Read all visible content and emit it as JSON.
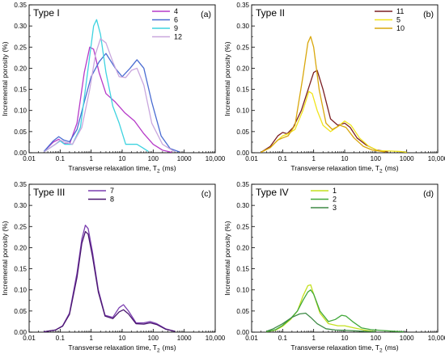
{
  "chart_data": [
    {
      "type": "line",
      "panel": "(a)",
      "title": "Type I",
      "xlabel": "Transverse relaxation time, T",
      "xlabel_sub": "2",
      "xlabel_unit": "(ms)",
      "ylabel": "Incremental porosity (%)",
      "xscale": "log",
      "xlim": [
        0.01,
        10000
      ],
      "ylim": [
        0,
        0.35
      ],
      "xticks": [
        "0.01",
        "0.1",
        "1",
        "10",
        "100",
        "1000",
        "10,000"
      ],
      "yticks": [
        "0.00",
        "0.05",
        "0.10",
        "0.15",
        "0.20",
        "0.25",
        "0.30",
        "0.35"
      ],
      "legend_position": "top-right",
      "series": [
        {
          "name": "4",
          "color": "#b63ac8",
          "points": [
            [
              0.03,
              0.003
            ],
            [
              0.06,
              0.025
            ],
            [
              0.09,
              0.032
            ],
            [
              0.13,
              0.022
            ],
            [
              0.2,
              0.02
            ],
            [
              0.35,
              0.07
            ],
            [
              0.6,
              0.19
            ],
            [
              0.9,
              0.25
            ],
            [
              1.2,
              0.245
            ],
            [
              1.8,
              0.19
            ],
            [
              3,
              0.14
            ],
            [
              6,
              0.12
            ],
            [
              12,
              0.095
            ],
            [
              25,
              0.075
            ],
            [
              50,
              0.045
            ],
            [
              100,
              0.02
            ],
            [
              200,
              0.006
            ],
            [
              400,
              0.001
            ]
          ]
        },
        {
          "name": "6",
          "color": "#4a6cd2",
          "points": [
            [
              0.03,
              0.003
            ],
            [
              0.06,
              0.028
            ],
            [
              0.09,
              0.038
            ],
            [
              0.13,
              0.03
            ],
            [
              0.2,
              0.026
            ],
            [
              0.35,
              0.055
            ],
            [
              0.6,
              0.12
            ],
            [
              1,
              0.18
            ],
            [
              1.8,
              0.215
            ],
            [
              3,
              0.235
            ],
            [
              6,
              0.2
            ],
            [
              10,
              0.18
            ],
            [
              18,
              0.2
            ],
            [
              30,
              0.22
            ],
            [
              50,
              0.2
            ],
            [
              90,
              0.12
            ],
            [
              180,
              0.04
            ],
            [
              350,
              0.01
            ],
            [
              700,
              0.002
            ]
          ]
        },
        {
          "name": "9",
          "color": "#3fd3e0",
          "points": [
            [
              0.03,
              0.002
            ],
            [
              0.07,
              0.02
            ],
            [
              0.1,
              0.028
            ],
            [
              0.14,
              0.02
            ],
            [
              0.25,
              0.02
            ],
            [
              0.45,
              0.06
            ],
            [
              0.8,
              0.2
            ],
            [
              1.2,
              0.3
            ],
            [
              1.5,
              0.315
            ],
            [
              2,
              0.28
            ],
            [
              3,
              0.19
            ],
            [
              5,
              0.11
            ],
            [
              8,
              0.07
            ],
            [
              13,
              0.02
            ],
            [
              20,
              0.02
            ],
            [
              30,
              0.02
            ],
            [
              45,
              0.012
            ],
            [
              70,
              0.003
            ]
          ]
        },
        {
          "name": "12",
          "color": "#c9a7de",
          "points": [
            [
              0.03,
              0.002
            ],
            [
              0.07,
              0.02
            ],
            [
              0.1,
              0.03
            ],
            [
              0.14,
              0.025
            ],
            [
              0.25,
              0.02
            ],
            [
              0.5,
              0.06
            ],
            [
              0.9,
              0.15
            ],
            [
              1.4,
              0.235
            ],
            [
              2,
              0.27
            ],
            [
              3,
              0.26
            ],
            [
              5,
              0.215
            ],
            [
              8,
              0.18
            ],
            [
              13,
              0.178
            ],
            [
              20,
              0.195
            ],
            [
              30,
              0.2
            ],
            [
              50,
              0.16
            ],
            [
              90,
              0.07
            ],
            [
              200,
              0.02
            ],
            [
              500,
              0.002
            ]
          ]
        }
      ]
    },
    {
      "type": "line",
      "panel": "(b)",
      "title": "Type II",
      "xlabel": "Transverse relaxation time, T",
      "xlabel_sub": "2",
      "xlabel_unit": "(ms)",
      "ylabel": "Incremental porosity (%)",
      "xscale": "log",
      "xlim": [
        0.01,
        10000
      ],
      "ylim": [
        0,
        0.35
      ],
      "xticks": [
        "0.01",
        "0.1",
        "1",
        "10",
        "100",
        "1000",
        "10,000"
      ],
      "yticks": [
        "0.00",
        "0.05",
        "0.10",
        "0.15",
        "0.20",
        "0.25",
        "0.30",
        "0.35"
      ],
      "legend_position": "top-right",
      "series": [
        {
          "name": "11",
          "color": "#7a1e22",
          "points": [
            [
              0.02,
              0.001
            ],
            [
              0.04,
              0.015
            ],
            [
              0.07,
              0.04
            ],
            [
              0.1,
              0.048
            ],
            [
              0.14,
              0.045
            ],
            [
              0.22,
              0.06
            ],
            [
              0.4,
              0.1
            ],
            [
              0.7,
              0.155
            ],
            [
              1,
              0.19
            ],
            [
              1.3,
              0.195
            ],
            [
              2,
              0.15
            ],
            [
              3.5,
              0.08
            ],
            [
              6,
              0.065
            ],
            [
              10,
              0.07
            ],
            [
              15,
              0.06
            ],
            [
              25,
              0.035
            ],
            [
              50,
              0.018
            ],
            [
              100,
              0.007
            ],
            [
              250,
              0.002
            ]
          ]
        },
        {
          "name": "5",
          "color": "#f1e41c",
          "points": [
            [
              0.02,
              0.001
            ],
            [
              0.04,
              0.012
            ],
            [
              0.07,
              0.03
            ],
            [
              0.1,
              0.04
            ],
            [
              0.15,
              0.045
            ],
            [
              0.25,
              0.055
            ],
            [
              0.45,
              0.1
            ],
            [
              0.7,
              0.145
            ],
            [
              0.9,
              0.14
            ],
            [
              1.3,
              0.1
            ],
            [
              2,
              0.065
            ],
            [
              3.5,
              0.05
            ],
            [
              6,
              0.062
            ],
            [
              10,
              0.075
            ],
            [
              16,
              0.065
            ],
            [
              30,
              0.035
            ],
            [
              60,
              0.015
            ],
            [
              120,
              0.005
            ],
            [
              300,
              0.004
            ],
            [
              600,
              0.003
            ],
            [
              1000,
              0.001
            ]
          ]
        },
        {
          "name": "10",
          "color": "#d9a70c",
          "points": [
            [
              0.02,
              0.001
            ],
            [
              0.04,
              0.012
            ],
            [
              0.07,
              0.03
            ],
            [
              0.1,
              0.035
            ],
            [
              0.15,
              0.04
            ],
            [
              0.25,
              0.065
            ],
            [
              0.45,
              0.18
            ],
            [
              0.65,
              0.26
            ],
            [
              0.8,
              0.275
            ],
            [
              1,
              0.25
            ],
            [
              1.5,
              0.15
            ],
            [
              2.5,
              0.07
            ],
            [
              4,
              0.055
            ],
            [
              7,
              0.065
            ],
            [
              11,
              0.06
            ],
            [
              20,
              0.035
            ],
            [
              40,
              0.015
            ],
            [
              80,
              0.006
            ],
            [
              200,
              0.002
            ]
          ]
        }
      ]
    },
    {
      "type": "line",
      "panel": "(c)",
      "title": "Type III",
      "xlabel": "Transverse relaxation time, T",
      "xlabel_sub": "2",
      "xlabel_unit": "(ms)",
      "ylabel": "Incremental porosity (%)",
      "xscale": "log",
      "xlim": [
        0.01,
        10000
      ],
      "ylim": [
        0,
        0.35
      ],
      "xticks": [
        "0.01",
        "0.1",
        "1",
        "10",
        "100",
        "1000",
        "10,000"
      ],
      "yticks": [
        "0.00",
        "0.05",
        "0.10",
        "0.15",
        "0.20",
        "0.25",
        "0.30",
        "0.35"
      ],
      "legend_position": "top-left",
      "series": [
        {
          "name": "7",
          "color": "#7b3fb0",
          "points": [
            [
              0.03,
              0.001
            ],
            [
              0.07,
              0.005
            ],
            [
              0.12,
              0.015
            ],
            [
              0.2,
              0.045
            ],
            [
              0.35,
              0.14
            ],
            [
              0.5,
              0.22
            ],
            [
              0.65,
              0.253
            ],
            [
              0.8,
              0.245
            ],
            [
              1.1,
              0.19
            ],
            [
              1.7,
              0.1
            ],
            [
              2.8,
              0.04
            ],
            [
              5,
              0.035
            ],
            [
              8,
              0.058
            ],
            [
              11,
              0.065
            ],
            [
              16,
              0.05
            ],
            [
              28,
              0.022
            ],
            [
              50,
              0.022
            ],
            [
              80,
              0.025
            ],
            [
              130,
              0.02
            ],
            [
              250,
              0.008
            ],
            [
              500,
              0.002
            ]
          ]
        },
        {
          "name": "8",
          "color": "#4a1670",
          "points": [
            [
              0.03,
              0.001
            ],
            [
              0.07,
              0.005
            ],
            [
              0.12,
              0.014
            ],
            [
              0.2,
              0.042
            ],
            [
              0.35,
              0.13
            ],
            [
              0.5,
              0.21
            ],
            [
              0.65,
              0.238
            ],
            [
              0.8,
              0.232
            ],
            [
              1.1,
              0.18
            ],
            [
              1.7,
              0.095
            ],
            [
              2.8,
              0.038
            ],
            [
              5,
              0.032
            ],
            [
              8,
              0.048
            ],
            [
              11,
              0.053
            ],
            [
              16,
              0.043
            ],
            [
              28,
              0.02
            ],
            [
              50,
              0.019
            ],
            [
              80,
              0.022
            ],
            [
              130,
              0.018
            ],
            [
              250,
              0.007
            ],
            [
              500,
              0.002
            ]
          ]
        }
      ]
    },
    {
      "type": "line",
      "panel": "(d)",
      "title": "Type IV",
      "xlabel": "Transverse relaxation time, T",
      "xlabel_sub": "2",
      "xlabel_unit": "(ms)",
      "ylabel": "Incremental porosity (%)",
      "xscale": "log",
      "xlim": [
        0.01,
        10000
      ],
      "ylim": [
        0,
        0.35
      ],
      "xticks": [
        "0.01",
        "0.1",
        "1",
        "10",
        "100",
        "1000",
        "10,000"
      ],
      "yticks": [
        "0.00",
        "0.05",
        "0.10",
        "0.15",
        "0.20",
        "0.25",
        "0.30",
        "0.35"
      ],
      "legend_position": "top-left",
      "series": [
        {
          "name": "1",
          "color": "#c4e01e",
          "points": [
            [
              0.03,
              0.001
            ],
            [
              0.06,
              0.005
            ],
            [
              0.1,
              0.014
            ],
            [
              0.18,
              0.03
            ],
            [
              0.3,
              0.05
            ],
            [
              0.45,
              0.085
            ],
            [
              0.65,
              0.11
            ],
            [
              0.8,
              0.112
            ],
            [
              1,
              0.09
            ],
            [
              1.6,
              0.045
            ],
            [
              3,
              0.02
            ],
            [
              6,
              0.015
            ],
            [
              10,
              0.015
            ],
            [
              20,
              0.01
            ],
            [
              50,
              0.004
            ],
            [
              100,
              0.001
            ]
          ]
        },
        {
          "name": "2",
          "color": "#41a83a",
          "points": [
            [
              0.03,
              0.001
            ],
            [
              0.06,
              0.006
            ],
            [
              0.1,
              0.016
            ],
            [
              0.18,
              0.032
            ],
            [
              0.3,
              0.05
            ],
            [
              0.45,
              0.075
            ],
            [
              0.65,
              0.095
            ],
            [
              0.8,
              0.1
            ],
            [
              1,
              0.09
            ],
            [
              1.6,
              0.05
            ],
            [
              3,
              0.025
            ],
            [
              5,
              0.03
            ],
            [
              8,
              0.04
            ],
            [
              11,
              0.038
            ],
            [
              18,
              0.025
            ],
            [
              35,
              0.01
            ],
            [
              70,
              0.006
            ],
            [
              150,
              0.004
            ],
            [
              400,
              0.002
            ],
            [
              800,
              0.001
            ]
          ]
        },
        {
          "name": "3",
          "color": "#3d8a45",
          "points": [
            [
              0.03,
              0.002
            ],
            [
              0.05,
              0.008
            ],
            [
              0.1,
              0.02
            ],
            [
              0.2,
              0.035
            ],
            [
              0.35,
              0.043
            ],
            [
              0.55,
              0.045
            ],
            [
              0.8,
              0.035
            ],
            [
              1.3,
              0.02
            ],
            [
              2.5,
              0.008
            ],
            [
              5,
              0.005
            ],
            [
              12,
              0.004
            ],
            [
              40,
              0.002
            ],
            [
              100,
              0.001
            ]
          ]
        }
      ]
    }
  ]
}
